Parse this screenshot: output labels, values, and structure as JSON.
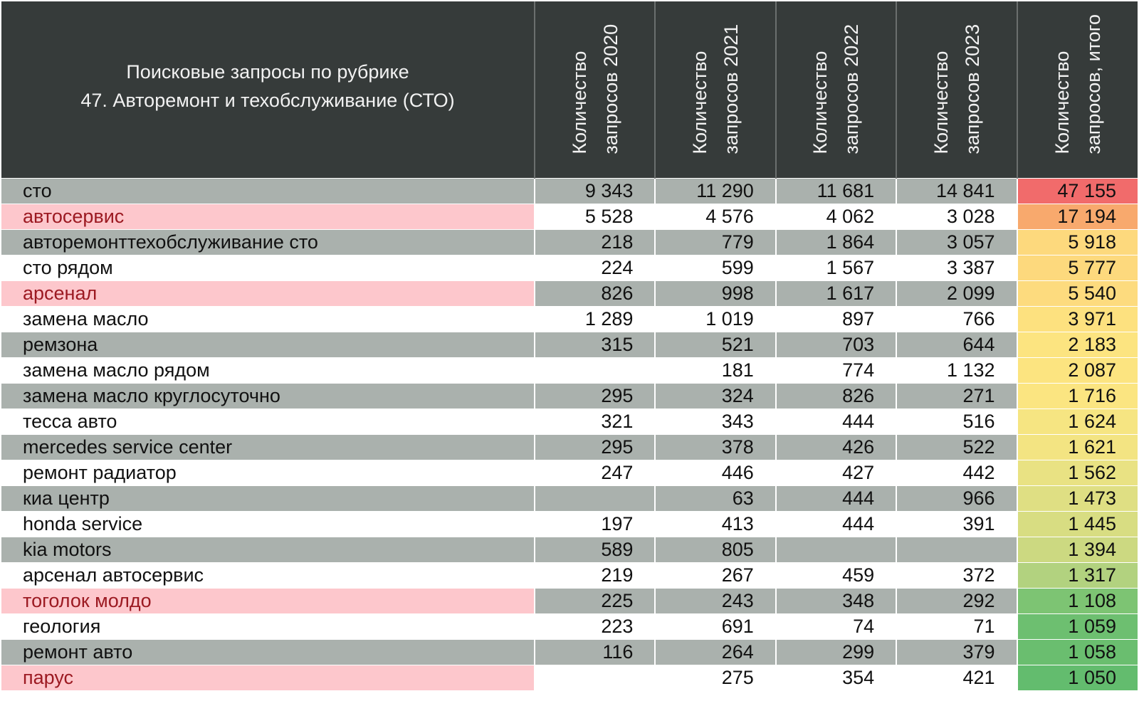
{
  "header": {
    "title_line1": "Поисковые запросы по рубрике",
    "title_line2": "47. Авторемонт и техобслуживание (СТО)",
    "columns": [
      {
        "line1": "Количество",
        "line2": "запросов 2020"
      },
      {
        "line1": "Количество",
        "line2": "запросов 2021"
      },
      {
        "line1": "Количество",
        "line2": "запросов 2022"
      },
      {
        "line1": "Количество",
        "line2": "запросов 2023"
      },
      {
        "line1": "Количество",
        "line2": "запросов, итого"
      }
    ]
  },
  "rows": [
    {
      "name": "сто",
      "v2020": "9 343",
      "v2021": "11 290",
      "v2022": "11 681",
      "v2023": "14 841",
      "total": "47 155",
      "highlight": false,
      "total_color": "#f16b6b"
    },
    {
      "name": "автосервис",
      "v2020": "5 528",
      "v2021": "4 576",
      "v2022": "4 062",
      "v2023": "3 028",
      "total": "17 194",
      "highlight": true,
      "total_color": "#f8a96d"
    },
    {
      "name": "авторемонттехобслуживание сто",
      "v2020": "218",
      "v2021": "779",
      "v2022": "1 864",
      "v2023": "3 057",
      "total": "5 918",
      "highlight": false,
      "total_color": "#fdd97d"
    },
    {
      "name": "сто рядом",
      "v2020": "224",
      "v2021": "599",
      "v2022": "1 567",
      "v2023": "3 387",
      "total": "5 777",
      "highlight": false,
      "total_color": "#fdd97d"
    },
    {
      "name": "арсенал",
      "v2020": "826",
      "v2021": "998",
      "v2022": "1 617",
      "v2023": "2 099",
      "total": "5 540",
      "highlight": true,
      "total_color": "#fddb7e"
    },
    {
      "name": "замена масло",
      "v2020": "1 289",
      "v2021": "1 019",
      "v2022": "897",
      "v2023": "766",
      "total": "3 971",
      "highlight": false,
      "total_color": "#fde17f"
    },
    {
      "name": "ремзона",
      "v2020": "315",
      "v2021": "521",
      "v2022": "703",
      "v2023": "644",
      "total": "2 183",
      "highlight": false,
      "total_color": "#fce480"
    },
    {
      "name": "замена масло рядом",
      "v2020": "",
      "v2021": "181",
      "v2022": "774",
      "v2023": "1 132",
      "total": "2 087",
      "highlight": false,
      "total_color": "#fce480"
    },
    {
      "name": "замена масло круглосуточно",
      "v2020": "295",
      "v2021": "324",
      "v2022": "826",
      "v2023": "271",
      "total": "1 716",
      "highlight": false,
      "total_color": "#fbe581"
    },
    {
      "name": "тесса авто",
      "v2020": "321",
      "v2021": "343",
      "v2022": "444",
      "v2023": "516",
      "total": "1 624",
      "highlight": false,
      "total_color": "#f6e582"
    },
    {
      "name": "mercedes service center",
      "v2020": "295",
      "v2021": "378",
      "v2022": "426",
      "v2023": "522",
      "total": "1 621",
      "highlight": false,
      "total_color": "#f3e482"
    },
    {
      "name": "ремонт радиатор",
      "v2020": "247",
      "v2021": "446",
      "v2022": "427",
      "v2023": "442",
      "total": "1 562",
      "highlight": false,
      "total_color": "#e9e283"
    },
    {
      "name": "киа центр",
      "v2020": "",
      "v2021": "63",
      "v2022": "444",
      "v2023": "966",
      "total": "1 473",
      "highlight": false,
      "total_color": "#dfdf83"
    },
    {
      "name": "honda service",
      "v2020": "197",
      "v2021": "413",
      "v2022": "444",
      "v2023": "391",
      "total": "1 445",
      "highlight": false,
      "total_color": "#d8dd82"
    },
    {
      "name": "kia motors",
      "v2020": "589",
      "v2021": "805",
      "v2022": "",
      "v2023": "",
      "total": "1 394",
      "highlight": false,
      "total_color": "#ccd981"
    },
    {
      "name": "арсенал автосервис",
      "v2020": "219",
      "v2021": "267",
      "v2022": "459",
      "v2023": "372",
      "total": "1 317",
      "highlight": false,
      "total_color": "#b2d27f"
    },
    {
      "name": "тоголок молдо",
      "v2020": "225",
      "v2021": "243",
      "v2022": "348",
      "v2023": "292",
      "total": "1 108",
      "highlight": true,
      "total_color": "#7dc473"
    },
    {
      "name": "геология",
      "v2020": "223",
      "v2021": "691",
      "v2022": "74",
      "v2023": "71",
      "total": "1 059",
      "highlight": false,
      "total_color": "#6dbf70"
    },
    {
      "name": "ремонт авто",
      "v2020": "116",
      "v2021": "264",
      "v2022": "299",
      "v2023": "379",
      "total": "1 058",
      "highlight": false,
      "total_color": "#6abe6f"
    },
    {
      "name": "парус",
      "v2020": "",
      "v2021": "275",
      "v2022": "354",
      "v2023": "421",
      "total": "1 050",
      "highlight": true,
      "total_color": "#63bc6e"
    }
  ]
}
